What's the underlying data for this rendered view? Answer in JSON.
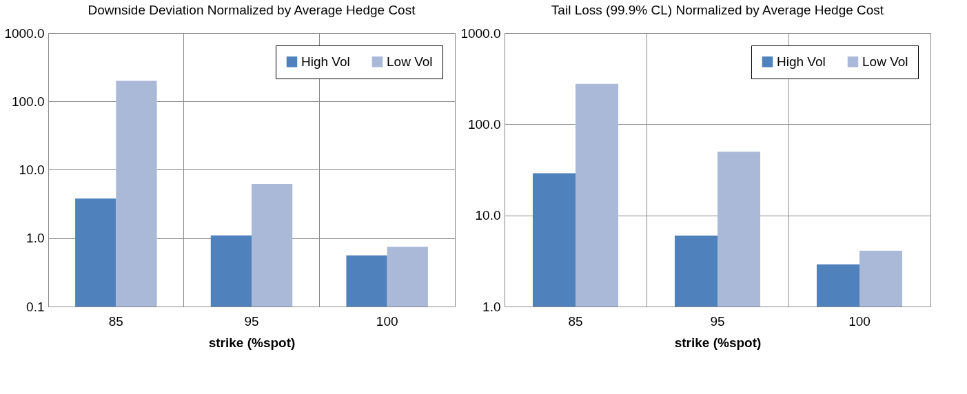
{
  "chart_data": [
    {
      "type": "bar",
      "title": "Downside Deviation Normalized by Average Hedge Cost",
      "xlabel": "strike (%spot)",
      "categories": [
        "85",
        "95",
        "100"
      ],
      "series": [
        {
          "name": "High Vol",
          "color": "#4f81bd",
          "values": [
            3.8,
            1.1,
            0.56
          ]
        },
        {
          "name": "Low Vol",
          "color": "#aab9d8",
          "values": [
            200,
            6.2,
            0.75
          ]
        }
      ],
      "log": "y",
      "ylim": [
        0.1,
        1000
      ],
      "yticks": [
        {
          "value": 0.1,
          "label": "0.1"
        },
        {
          "value": 1,
          "label": "1.0"
        },
        {
          "value": 10,
          "label": "10.0"
        },
        {
          "value": 100,
          "label": "100.0"
        },
        {
          "value": 1000,
          "label": "1000.0"
        }
      ],
      "grid": true,
      "legend": "top right"
    },
    {
      "type": "bar",
      "title": "Tail Loss (99.9% CL) Normalized by Average Hedge Cost",
      "xlabel": "strike (%spot)",
      "categories": [
        "85",
        "95",
        "100"
      ],
      "series": [
        {
          "name": "High Vol",
          "color": "#4f81bd",
          "values": [
            29,
            6.0,
            2.9
          ]
        },
        {
          "name": "Low Vol",
          "color": "#aab9d8",
          "values": [
            277,
            50,
            4.1
          ]
        }
      ],
      "log": "y",
      "ylim": [
        1,
        1000
      ],
      "yticks": [
        {
          "value": 1,
          "label": "1.0"
        },
        {
          "value": 10,
          "label": "10.0"
        },
        {
          "value": 100,
          "label": "100.0"
        },
        {
          "value": 1000,
          "label": "1000.0"
        }
      ],
      "grid": true,
      "legend": "top right"
    }
  ]
}
